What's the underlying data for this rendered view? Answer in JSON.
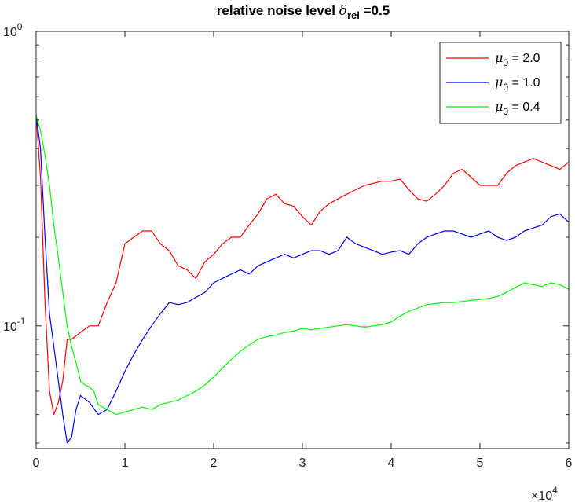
{
  "chart_data": {
    "type": "line",
    "title": {
      "prefix": "relative noise level ",
      "symbol": "δ",
      "subscript": "rel",
      "suffix": " =0.5"
    },
    "xlabel": "",
    "ylabel": "",
    "x_scale": "linear",
    "y_scale": "log",
    "xlim": [
      0,
      60000
    ],
    "ylim": [
      0.0383,
      1.0
    ],
    "x_ticks": [
      {
        "value": 0,
        "label": "0"
      },
      {
        "value": 10000,
        "label": "1"
      },
      {
        "value": 20000,
        "label": "2"
      },
      {
        "value": 30000,
        "label": "3"
      },
      {
        "value": 40000,
        "label": "4"
      },
      {
        "value": 50000,
        "label": "5"
      },
      {
        "value": 60000,
        "label": "6"
      }
    ],
    "x_exponent": {
      "base": "×10",
      "exp": "4"
    },
    "y_ticks": [
      {
        "value": 1.0,
        "base": "10",
        "exp": "0"
      },
      {
        "value": 0.1,
        "base": "10",
        "exp": "-1"
      }
    ],
    "grid": false,
    "legend_position": "top-right",
    "series": [
      {
        "name": {
          "symbol": "μ",
          "subscript": "0",
          "value": " = 2.0"
        },
        "color": "#ff0000",
        "x": [
          0,
          500,
          1000,
          1500,
          2000,
          2500,
          3000,
          3500,
          4000,
          5000,
          6000,
          7000,
          8000,
          9000,
          10000,
          11000,
          12000,
          13000,
          14000,
          15000,
          16000,
          17000,
          18000,
          19000,
          20000,
          21000,
          22000,
          23000,
          24000,
          25000,
          26000,
          27000,
          28000,
          29000,
          30000,
          31000,
          32000,
          33000,
          34000,
          35000,
          36000,
          37000,
          38000,
          39000,
          40000,
          41000,
          42000,
          43000,
          44000,
          45000,
          46000,
          47000,
          48000,
          49000,
          50000,
          51000,
          52000,
          53000,
          54000,
          55000,
          56000,
          57000,
          58000,
          59000,
          60000
        ],
        "y": [
          0.52,
          0.32,
          0.12,
          0.06,
          0.05,
          0.055,
          0.065,
          0.09,
          0.09,
          0.095,
          0.1,
          0.1,
          0.12,
          0.14,
          0.19,
          0.2,
          0.21,
          0.21,
          0.19,
          0.18,
          0.16,
          0.155,
          0.145,
          0.165,
          0.175,
          0.19,
          0.2,
          0.2,
          0.22,
          0.24,
          0.27,
          0.28,
          0.26,
          0.255,
          0.235,
          0.22,
          0.245,
          0.26,
          0.27,
          0.28,
          0.29,
          0.3,
          0.305,
          0.31,
          0.31,
          0.315,
          0.29,
          0.27,
          0.265,
          0.28,
          0.3,
          0.33,
          0.34,
          0.32,
          0.3,
          0.3,
          0.3,
          0.33,
          0.35,
          0.36,
          0.37,
          0.36,
          0.35,
          0.34,
          0.36
        ]
      },
      {
        "name": {
          "symbol": "μ",
          "subscript": "0",
          "value": " = 1.0"
        },
        "color": "#0000ff",
        "x": [
          0,
          500,
          1000,
          1500,
          2000,
          2500,
          3000,
          3500,
          4000,
          4500,
          5000,
          6000,
          7000,
          8000,
          9000,
          10000,
          11000,
          12000,
          13000,
          14000,
          15000,
          16000,
          17000,
          18000,
          19000,
          20000,
          21000,
          22000,
          23000,
          24000,
          25000,
          26000,
          27000,
          28000,
          29000,
          30000,
          31000,
          32000,
          33000,
          34000,
          35000,
          36000,
          37000,
          38000,
          39000,
          40000,
          41000,
          42000,
          43000,
          44000,
          45000,
          46000,
          47000,
          48000,
          49000,
          50000,
          51000,
          52000,
          53000,
          54000,
          55000,
          56000,
          57000,
          58000,
          59000,
          60000
        ],
        "y": [
          0.52,
          0.4,
          0.2,
          0.11,
          0.085,
          0.065,
          0.05,
          0.04,
          0.042,
          0.052,
          0.058,
          0.055,
          0.05,
          0.052,
          0.06,
          0.07,
          0.08,
          0.09,
          0.1,
          0.11,
          0.12,
          0.118,
          0.12,
          0.125,
          0.13,
          0.14,
          0.145,
          0.15,
          0.155,
          0.15,
          0.16,
          0.165,
          0.17,
          0.175,
          0.17,
          0.175,
          0.18,
          0.18,
          0.175,
          0.18,
          0.2,
          0.19,
          0.185,
          0.18,
          0.175,
          0.178,
          0.18,
          0.175,
          0.19,
          0.2,
          0.205,
          0.21,
          0.21,
          0.205,
          0.2,
          0.205,
          0.21,
          0.2,
          0.195,
          0.2,
          0.21,
          0.215,
          0.22,
          0.235,
          0.24,
          0.225
        ]
      },
      {
        "name": {
          "symbol": "μ",
          "subscript": "0",
          "value": " = 0.4"
        },
        "color": "#00ff00",
        "x": [
          0,
          500,
          1000,
          1500,
          2000,
          2500,
          3000,
          3500,
          4000,
          4500,
          5000,
          5500,
          6000,
          6500,
          7000,
          8000,
          9000,
          10000,
          11000,
          12000,
          13000,
          14000,
          15000,
          16000,
          17000,
          18000,
          19000,
          20000,
          21000,
          22000,
          23000,
          24000,
          25000,
          26000,
          27000,
          28000,
          29000,
          30000,
          31000,
          32000,
          33000,
          34000,
          35000,
          36000,
          37000,
          38000,
          39000,
          40000,
          41000,
          42000,
          43000,
          44000,
          45000,
          46000,
          47000,
          48000,
          49000,
          50000,
          51000,
          52000,
          53000,
          54000,
          55000,
          56000,
          57000,
          58000,
          59000,
          60000
        ],
        "y": [
          0.52,
          0.46,
          0.38,
          0.3,
          0.22,
          0.17,
          0.13,
          0.1,
          0.085,
          0.075,
          0.065,
          0.063,
          0.062,
          0.06,
          0.054,
          0.052,
          0.05,
          0.051,
          0.052,
          0.053,
          0.052,
          0.054,
          0.055,
          0.056,
          0.058,
          0.06,
          0.063,
          0.067,
          0.072,
          0.077,
          0.082,
          0.086,
          0.09,
          0.092,
          0.093,
          0.095,
          0.096,
          0.098,
          0.097,
          0.098,
          0.099,
          0.1,
          0.101,
          0.1,
          0.099,
          0.1,
          0.101,
          0.103,
          0.108,
          0.112,
          0.115,
          0.118,
          0.119,
          0.12,
          0.12,
          0.121,
          0.122,
          0.123,
          0.124,
          0.126,
          0.13,
          0.135,
          0.14,
          0.138,
          0.136,
          0.14,
          0.138,
          0.133
        ]
      }
    ]
  }
}
